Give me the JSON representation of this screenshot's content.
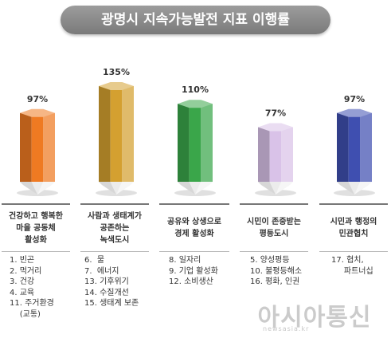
{
  "title": "광명시 지속가능발전 지표 이행률",
  "colors": {
    "orange": "#ef7a22",
    "gold": "#d4a030",
    "green": "#3aa64a",
    "lavender": "#d9c2e8",
    "blue": "#3f4fb0",
    "title_bg": "#8a8a8a"
  },
  "chart_data": {
    "type": "bar",
    "categories": [
      "건강하고 행복한 마을 공동체 활성화",
      "사람과 생태계가 공존하는 녹색도시",
      "공유와 상생으로 경제 활성화",
      "시민이 존중받는 평등도시",
      "시민과 행정의 민관협치"
    ],
    "values": [
      97,
      135,
      110,
      77,
      97
    ],
    "value_labels": [
      "97%",
      "135%",
      "110%",
      "77%",
      "97%"
    ]
  },
  "columns": [
    {
      "label": "건강하고 행복한\n마을 공동체\n활성화",
      "goals": [
        "1. 빈곤",
        "2. 먹거리",
        "3. 건강",
        "4. 교육",
        "11. 주거환경",
        "    (교통)"
      ]
    },
    {
      "label": "사람과 생태계가\n공존하는\n녹색도시",
      "goals": [
        "6.  물",
        "7.  에너지",
        "13. 기후위기",
        "14. 수질개선",
        "15. 생태계 보존"
      ]
    },
    {
      "label": "공유와 상생으로\n경제 활성화",
      "goals": [
        "8. 일자리",
        "9. 기업 활성화",
        "12. 소비생산"
      ]
    },
    {
      "label": "시민이 존중받는\n평등도시",
      "goals": [
        "5. 양성평등",
        "10. 불평등해소",
        "16. 평화, 인권"
      ]
    },
    {
      "label": "시민과 행정의\n민관협치",
      "goals": [
        "17. 협치,",
        "     파트너십"
      ]
    }
  ],
  "watermark": {
    "text": "아시아통신",
    "sub": "newsasia.kr"
  }
}
